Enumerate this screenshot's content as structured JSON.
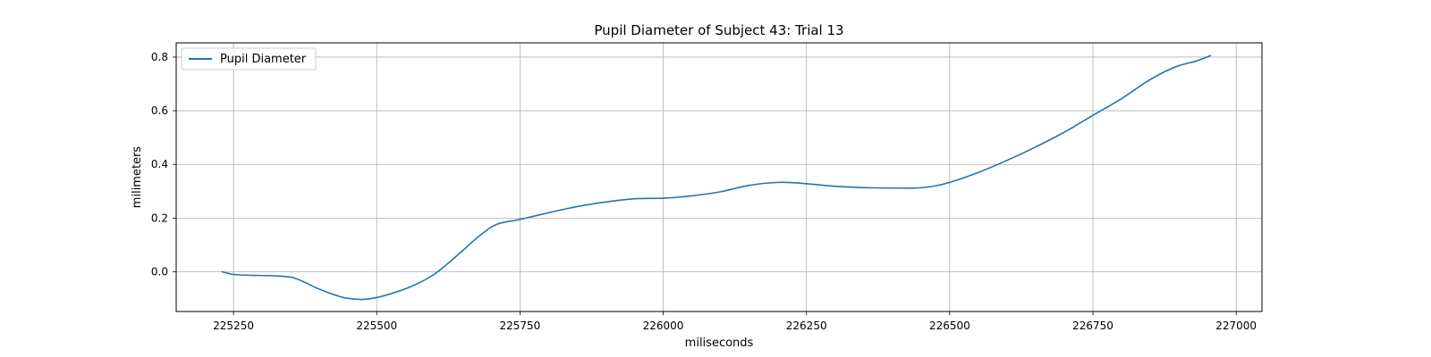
{
  "chart_data": {
    "type": "line",
    "title": "Pupil Diameter of Subject 43: Trial 13",
    "xlabel": "miliseconds",
    "ylabel": "milimeters",
    "xlim": [
      225150,
      227045
    ],
    "ylim": [
      -0.148,
      0.853
    ],
    "xticks": [
      225250,
      225500,
      225750,
      226000,
      226250,
      226500,
      226750,
      227000
    ],
    "yticks": [
      0.0,
      0.2,
      0.4,
      0.6,
      0.8
    ],
    "ytick_labels": [
      "0.0",
      "0.2",
      "0.4",
      "0.6",
      "0.8"
    ],
    "grid": true,
    "legend_position": "top-left",
    "series": [
      {
        "name": "Pupil Diameter",
        "color": "#1f77b4",
        "x": [
          225230,
          225250,
          225280,
          225320,
          225350,
          225370,
          225400,
          225440,
          225470,
          225490,
          225520,
          225560,
          225600,
          225640,
          225680,
          225710,
          225750,
          225800,
          225850,
          225900,
          225950,
          226000,
          226050,
          226100,
          226150,
          226200,
          226240,
          226280,
          226320,
          226360,
          226400,
          226440,
          226470,
          226500,
          226550,
          226600,
          226650,
          226700,
          226750,
          226800,
          226840,
          226870,
          226900,
          226930,
          226955
        ],
        "y": [
          0.0,
          -0.01,
          -0.013,
          -0.015,
          -0.02,
          -0.035,
          -0.065,
          -0.095,
          -0.103,
          -0.1,
          -0.085,
          -0.055,
          -0.01,
          0.06,
          0.135,
          0.177,
          0.195,
          0.22,
          0.243,
          0.26,
          0.272,
          0.274,
          0.283,
          0.298,
          0.322,
          0.333,
          0.33,
          0.322,
          0.316,
          0.313,
          0.312,
          0.312,
          0.318,
          0.333,
          0.37,
          0.415,
          0.465,
          0.52,
          0.583,
          0.645,
          0.703,
          0.74,
          0.768,
          0.785,
          0.805
        ]
      }
    ]
  }
}
